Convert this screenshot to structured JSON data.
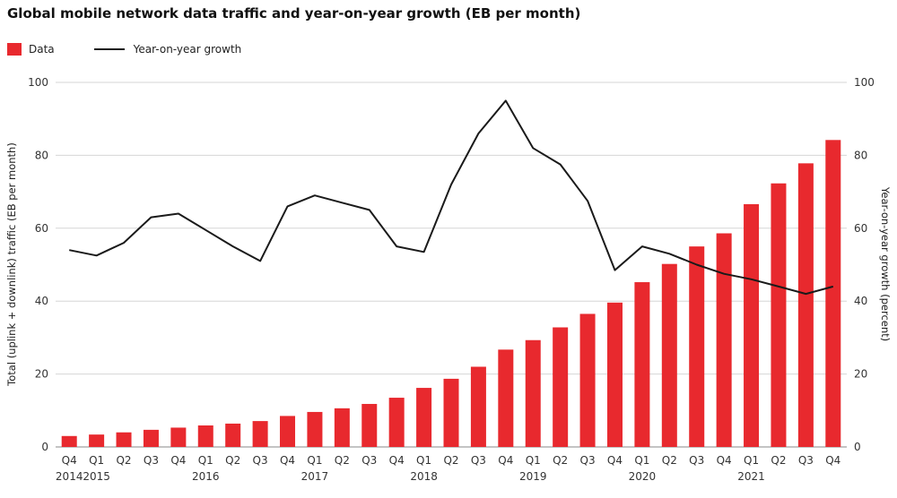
{
  "title": "Global mobile network data traffic and year-on-year growth (EB per month)",
  "legend": {
    "bar_label": "Data",
    "line_label": "Year-on-year growth"
  },
  "colors": {
    "bar": "#e8292e",
    "line": "#1a1a1a",
    "grid": "#d6d6d6"
  },
  "chart_data": {
    "type": "bar",
    "title": "Global mobile network data traffic and year-on-year growth (EB per month)",
    "ylabel": "Total (uplink + downlink) traffic (EB per month)",
    "y2label": "Year-on-year growth (percent)",
    "ylim": [
      0,
      100
    ],
    "y2lim": [
      0,
      100
    ],
    "yticks": [
      0,
      20,
      40,
      60,
      80,
      100
    ],
    "grid": true,
    "legend_position": "top-left",
    "quarter_labels": [
      "Q4",
      "Q1",
      "Q2",
      "Q3",
      "Q4",
      "Q1",
      "Q2",
      "Q3",
      "Q4",
      "Q1",
      "Q2",
      "Q3",
      "Q4",
      "Q1",
      "Q2",
      "Q3",
      "Q4",
      "Q1",
      "Q2",
      "Q3",
      "Q4",
      "Q1",
      "Q2",
      "Q3",
      "Q4",
      "Q1",
      "Q2",
      "Q3",
      "Q4"
    ],
    "year_labels": [
      "2014",
      "2015",
      "",
      "",
      "",
      "2016",
      "",
      "",
      "",
      "2017",
      "",
      "",
      "",
      "2018",
      "",
      "",
      "",
      "2019",
      "",
      "",
      "",
      "2020",
      "",
      "",
      "",
      "2021",
      "",
      "",
      ""
    ],
    "series": [
      {
        "name": "Data",
        "type": "bar",
        "values": [
          3.0,
          3.4,
          4.0,
          4.7,
          5.3,
          5.9,
          6.4,
          7.1,
          8.5,
          9.6,
          10.6,
          11.8,
          13.5,
          16.2,
          18.7,
          22.0,
          26.7,
          29.3,
          32.8,
          36.5,
          39.6,
          45.2,
          50.2,
          55.0,
          58.6,
          66.6,
          72.3,
          77.8,
          84.2
        ]
      },
      {
        "name": "Year-on-year growth",
        "type": "line",
        "axis": "right",
        "values": [
          54.0,
          52.5,
          56.0,
          63.0,
          64.0,
          59.5,
          55.0,
          51.0,
          66.0,
          69.0,
          67.0,
          65.0,
          55.0,
          53.5,
          72.0,
          86.0,
          95.0,
          82.0,
          77.5,
          67.5,
          48.5,
          55.0,
          53.0,
          50.0,
          47.5,
          46.0,
          44.0,
          42.0,
          44.0
        ]
      }
    ]
  }
}
